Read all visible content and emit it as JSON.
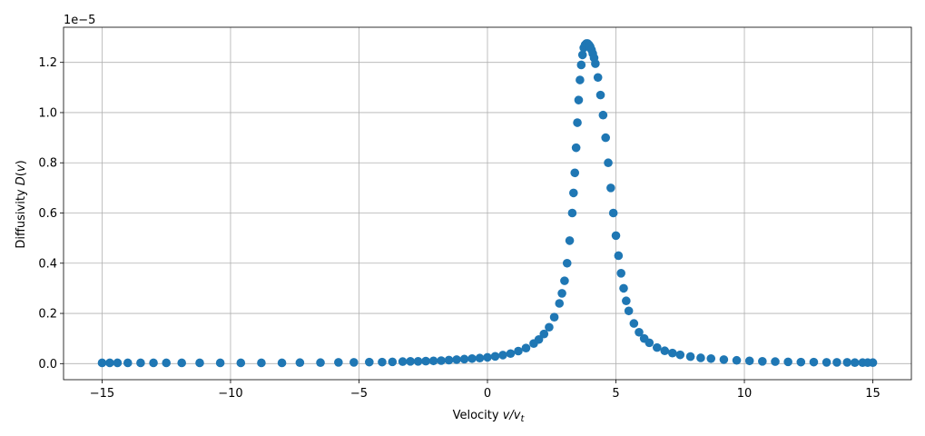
{
  "chart_data": {
    "type": "scatter",
    "title": "",
    "xlabel_text": "Velocity ",
    "xlabel_math": "v/v",
    "xlabel_sub": "t",
    "ylabel_text": "Diffusivity ",
    "ylabel_math": "D",
    "ylabel_suffix_open": "(",
    "ylabel_suffix_var": "v",
    "ylabel_suffix_close": ")",
    "y_offset_label": "1e−5",
    "y_scale_exponent": -5,
    "xlim": [
      -16.5,
      16.5
    ],
    "ylim": [
      -0.064,
      1.34
    ],
    "xticks": [
      -15,
      -10,
      -5,
      0,
      5,
      10,
      15
    ],
    "xtick_labels": [
      "−15",
      "−10",
      "−5",
      "0",
      "5",
      "10",
      "15"
    ],
    "yticks": [
      0.0,
      0.2,
      0.4,
      0.6,
      0.8,
      1.0,
      1.2
    ],
    "ytick_labels": [
      "0.0",
      "0.2",
      "0.4",
      "0.6",
      "0.8",
      "1.0",
      "1.2"
    ],
    "grid": true,
    "marker_color": "#1f77b4",
    "series": [
      {
        "x": [
          -15.0,
          -14.7,
          -14.4,
          -14.0,
          -13.5,
          -13.0,
          -12.5,
          -11.9,
          -11.2,
          -10.4,
          -9.6,
          -8.8,
          -8.0,
          -7.3,
          -6.5,
          -5.8,
          -5.2,
          -4.6,
          -4.1,
          -3.7,
          -3.3,
          -3.0,
          -2.7,
          -2.4,
          -2.1,
          -1.8,
          -1.5,
          -1.2,
          -0.9,
          -0.6,
          -0.3,
          0.0,
          0.3,
          0.6,
          0.9,
          1.2,
          1.5,
          1.8,
          2.0,
          2.2,
          2.4,
          2.6,
          2.8,
          2.9,
          3.0,
          3.1,
          3.2,
          3.3,
          3.35,
          3.4,
          3.45,
          3.5,
          3.55,
          3.6,
          3.65,
          3.7,
          3.75,
          3.8,
          3.85,
          3.9,
          3.95,
          4.0,
          4.05,
          4.1,
          4.15,
          4.2,
          4.3,
          4.4,
          4.5,
          4.6,
          4.7,
          4.8,
          4.9,
          5.0,
          5.1,
          5.2,
          5.3,
          5.4,
          5.5,
          5.7,
          5.9,
          6.1,
          6.3,
          6.6,
          6.9,
          7.2,
          7.5,
          7.9,
          8.3,
          8.7,
          9.2,
          9.7,
          10.2,
          10.7,
          11.2,
          11.7,
          12.2,
          12.7,
          13.2,
          13.6,
          14.0,
          14.3,
          14.6,
          14.8,
          15.0
        ],
        "y": [
          0.003,
          0.003,
          0.003,
          0.003,
          0.003,
          0.003,
          0.003,
          0.003,
          0.003,
          0.003,
          0.003,
          0.003,
          0.003,
          0.004,
          0.004,
          0.005,
          0.005,
          0.006,
          0.006,
          0.007,
          0.008,
          0.009,
          0.009,
          0.01,
          0.011,
          0.012,
          0.014,
          0.016,
          0.018,
          0.02,
          0.022,
          0.025,
          0.029,
          0.034,
          0.04,
          0.05,
          0.062,
          0.08,
          0.096,
          0.118,
          0.145,
          0.185,
          0.24,
          0.28,
          0.33,
          0.4,
          0.49,
          0.6,
          0.68,
          0.76,
          0.86,
          0.96,
          1.05,
          1.13,
          1.19,
          1.23,
          1.258,
          1.27,
          1.275,
          1.275,
          1.27,
          1.262,
          1.25,
          1.235,
          1.218,
          1.195,
          1.14,
          1.07,
          0.99,
          0.9,
          0.8,
          0.7,
          0.6,
          0.51,
          0.43,
          0.36,
          0.3,
          0.25,
          0.21,
          0.16,
          0.125,
          0.1,
          0.083,
          0.064,
          0.051,
          0.042,
          0.035,
          0.028,
          0.023,
          0.02,
          0.016,
          0.013,
          0.011,
          0.009,
          0.008,
          0.007,
          0.006,
          0.006,
          0.005,
          0.005,
          0.005,
          0.004,
          0.004,
          0.004,
          0.004
        ]
      }
    ]
  }
}
